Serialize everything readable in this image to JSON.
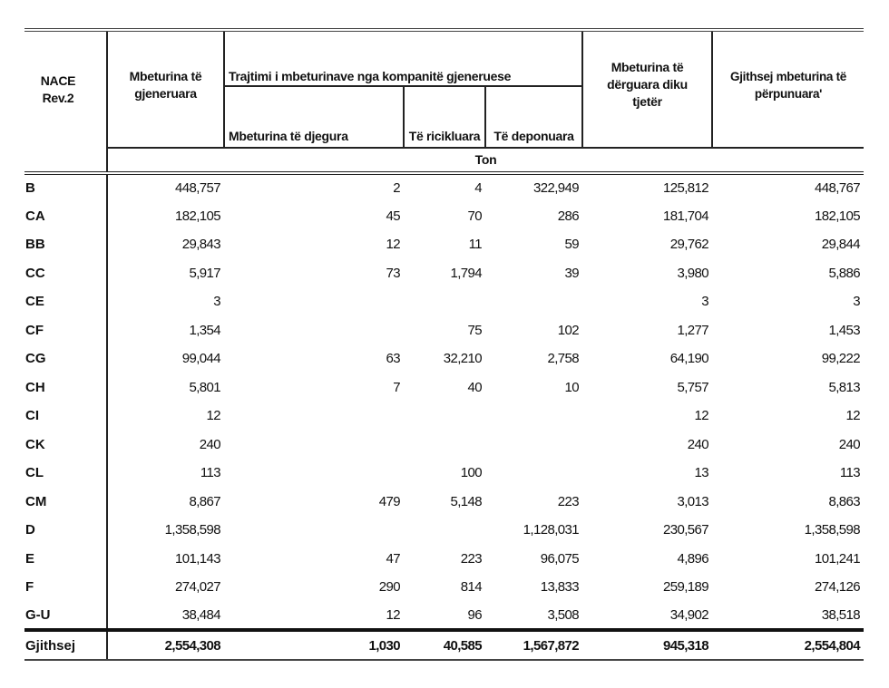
{
  "headers": {
    "nace": "NACE Rev.2",
    "generated": "Mbeturina të gjeneruara",
    "treatment_group": "Trajtimi i mbeturinave nga kompanitë gjeneruese",
    "burned": "Mbeturina të djegura",
    "recycled": "Të ricikluara",
    "landfilled": "Të deponuara",
    "sent_elsewhere": "Mbeturina të dërguara diku tjetër",
    "total_processed": "Gjithsej mbeturina të përpunuara'",
    "unit": "Ton"
  },
  "rows": [
    {
      "code": "B",
      "generated": "448,757",
      "burned": "2",
      "recycled": "4",
      "landfilled": "322,949",
      "sent": "125,812",
      "total": "448,767"
    },
    {
      "code": "CA",
      "generated": "182,105",
      "burned": "45",
      "recycled": "70",
      "landfilled": "286",
      "sent": "181,704",
      "total": "182,105"
    },
    {
      "code": "BB",
      "generated": "29,843",
      "burned": "12",
      "recycled": "11",
      "landfilled": "59",
      "sent": "29,762",
      "total": "29,844"
    },
    {
      "code": "CC",
      "generated": "5,917",
      "burned": "73",
      "recycled": "1,794",
      "landfilled": "39",
      "sent": "3,980",
      "total": "5,886"
    },
    {
      "code": "CE",
      "generated": "3",
      "burned": "",
      "recycled": "",
      "landfilled": "",
      "sent": "3",
      "total": "3"
    },
    {
      "code": "CF",
      "generated": "1,354",
      "burned": "",
      "recycled": "75",
      "landfilled": "102",
      "sent": "1,277",
      "total": "1,453"
    },
    {
      "code": "CG",
      "generated": "99,044",
      "burned": "63",
      "recycled": "32,210",
      "landfilled": "2,758",
      "sent": "64,190",
      "total": "99,222"
    },
    {
      "code": "CH",
      "generated": "5,801",
      "burned": "7",
      "recycled": "40",
      "landfilled": "10",
      "sent": "5,757",
      "total": "5,813"
    },
    {
      "code": "CI",
      "generated": "12",
      "burned": "",
      "recycled": "",
      "landfilled": "",
      "sent": "12",
      "total": "12"
    },
    {
      "code": "CK",
      "generated": "240",
      "burned": "",
      "recycled": "",
      "landfilled": "",
      "sent": "240",
      "total": "240"
    },
    {
      "code": "CL",
      "generated": "113",
      "burned": "",
      "recycled": "100",
      "landfilled": "",
      "sent": "13",
      "total": "113"
    },
    {
      "code": "CM",
      "generated": "8,867",
      "burned": "479",
      "recycled": "5,148",
      "landfilled": "223",
      "sent": "3,013",
      "total": "8,863"
    },
    {
      "code": "D",
      "generated": "1,358,598",
      "burned": "",
      "recycled": "",
      "landfilled": "1,128,031",
      "sent": "230,567",
      "total": "1,358,598"
    },
    {
      "code": "E",
      "generated": "101,143",
      "burned": "47",
      "recycled": "223",
      "landfilled": "96,075",
      "sent": "4,896",
      "total": "101,241"
    },
    {
      "code": "F",
      "generated": "274,027",
      "burned": "290",
      "recycled": "814",
      "landfilled": "13,833",
      "sent": "259,189",
      "total": "274,126"
    },
    {
      "code": "G-U",
      "generated": "38,484",
      "burned": "12",
      "recycled": "96",
      "landfilled": "3,508",
      "sent": "34,902",
      "total": "38,518"
    }
  ],
  "total": {
    "code": "Gjithsej",
    "generated": "2,554,308",
    "burned": "1,030",
    "recycled": "40,585",
    "landfilled": "1,567,872",
    "sent": "945,318",
    "total": "2,554,804"
  }
}
